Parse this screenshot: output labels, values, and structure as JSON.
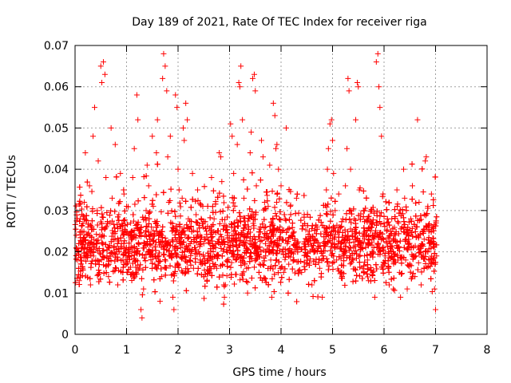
{
  "chart_data": {
    "type": "scatter",
    "title": "Day 189 of 2021, Rate Of TEC Index for receiver riga",
    "xlabel": "GPS time / hours",
    "ylabel": "ROTI / TECUs",
    "xlim": [
      0,
      8
    ],
    "ylim": [
      0,
      0.07
    ],
    "x_ticks": [
      0,
      1,
      2,
      3,
      4,
      5,
      6,
      7,
      8
    ],
    "y_ticks": [
      0,
      0.01,
      0.02,
      0.03,
      0.04,
      0.05,
      0.06,
      0.07
    ],
    "y_tick_labels": [
      "0",
      "0.01",
      "0.02",
      "0.03",
      "0.04",
      "0.05",
      "0.06",
      "0.07"
    ],
    "grid": true,
    "marker": "plus",
    "color": "#ff0000",
    "series": [
      {
        "points": [
          [
            0.02,
            0.024
          ],
          [
            0.05,
            0.018
          ],
          [
            0.08,
            0.013
          ],
          [
            0.1,
            0.028
          ],
          [
            0.12,
            0.021
          ],
          [
            0.15,
            0.016
          ],
          [
            0.18,
            0.032
          ],
          [
            0.2,
            0.044
          ],
          [
            0.22,
            0.019
          ],
          [
            0.25,
            0.026
          ],
          [
            0.28,
            0.036
          ],
          [
            0.3,
            0.012
          ],
          [
            0.33,
            0.022
          ],
          [
            0.35,
            0.048
          ],
          [
            0.38,
            0.055
          ],
          [
            0.4,
            0.018
          ],
          [
            0.43,
            0.03
          ],
          [
            0.45,
            0.042
          ],
          [
            0.48,
            0.024
          ],
          [
            0.5,
            0.065
          ],
          [
            0.52,
            0.061
          ],
          [
            0.55,
            0.066
          ],
          [
            0.58,
            0.063
          ],
          [
            0.6,
            0.038
          ],
          [
            0.62,
            0.019
          ],
          [
            0.65,
            0.014
          ],
          [
            0.68,
            0.027
          ],
          [
            0.7,
            0.05
          ],
          [
            0.72,
            0.033
          ],
          [
            0.75,
            0.021
          ],
          [
            0.78,
            0.046
          ],
          [
            0.8,
            0.016
          ],
          [
            0.83,
            0.012
          ],
          [
            0.85,
            0.029
          ],
          [
            0.88,
            0.039
          ],
          [
            0.9,
            0.022
          ],
          [
            0.93,
            0.018
          ],
          [
            0.95,
            0.034
          ],
          [
            0.98,
            0.025
          ],
          [
            1.0,
            0.031
          ],
          [
            1.02,
            0.015
          ],
          [
            1.05,
            0.02
          ],
          [
            1.08,
            0.027
          ],
          [
            1.1,
            0.019
          ],
          [
            1.12,
            0.038
          ],
          [
            1.15,
            0.045
          ],
          [
            1.18,
            0.024
          ],
          [
            1.2,
            0.058
          ],
          [
            1.22,
            0.052
          ],
          [
            1.25,
            0.016
          ],
          [
            1.28,
            0.006
          ],
          [
            1.3,
            0.004
          ],
          [
            1.33,
            0.011
          ],
          [
            1.35,
            0.022
          ],
          [
            1.38,
            0.03
          ],
          [
            1.4,
            0.041
          ],
          [
            1.43,
            0.036
          ],
          [
            1.45,
            0.02
          ],
          [
            1.48,
            0.026
          ],
          [
            1.5,
            0.048
          ],
          [
            1.52,
            0.031
          ],
          [
            1.55,
            0.017
          ],
          [
            1.58,
            0.044
          ],
          [
            1.6,
            0.052
          ],
          [
            1.62,
            0.023
          ],
          [
            1.65,
            0.008
          ],
          [
            1.68,
            0.014
          ],
          [
            1.7,
            0.062
          ],
          [
            1.72,
            0.068
          ],
          [
            1.75,
            0.065
          ],
          [
            1.78,
            0.059
          ],
          [
            1.8,
            0.043
          ],
          [
            1.82,
            0.032
          ],
          [
            1.85,
            0.048
          ],
          [
            1.88,
            0.025
          ],
          [
            1.9,
            0.009
          ],
          [
            1.92,
            0.006
          ],
          [
            1.95,
            0.058
          ],
          [
            1.98,
            0.055
          ],
          [
            2.0,
            0.04
          ],
          [
            2.02,
            0.035
          ],
          [
            2.05,
            0.021
          ],
          [
            2.08,
            0.033
          ],
          [
            2.1,
            0.05
          ],
          [
            2.12,
            0.047
          ],
          [
            2.15,
            0.056
          ],
          [
            2.18,
            0.052
          ],
          [
            2.2,
            0.028
          ],
          [
            2.22,
            0.018
          ],
          [
            2.25,
            0.026
          ],
          [
            2.28,
            0.039
          ],
          [
            2.3,
            0.016
          ],
          [
            2.33,
            0.021
          ],
          [
            2.35,
            0.029
          ],
          [
            2.38,
            0.035
          ],
          [
            2.4,
            0.02
          ],
          [
            2.43,
            0.024
          ],
          [
            2.45,
            0.017
          ],
          [
            2.48,
            0.031
          ],
          [
            2.5,
            0.022
          ],
          [
            2.55,
            0.025
          ],
          [
            2.6,
            0.019
          ],
          [
            2.65,
            0.038
          ],
          [
            2.7,
            0.028
          ],
          [
            2.75,
            0.016
          ],
          [
            2.8,
            0.044
          ],
          [
            2.83,
            0.043
          ],
          [
            2.85,
            0.037
          ],
          [
            2.88,
            0.023
          ],
          [
            2.9,
            0.009
          ],
          [
            2.92,
            0.012
          ],
          [
            2.95,
            0.026
          ],
          [
            3.0,
            0.021
          ],
          [
            3.02,
            0.051
          ],
          [
            3.05,
            0.048
          ],
          [
            3.08,
            0.039
          ],
          [
            3.1,
            0.027
          ],
          [
            3.12,
            0.018
          ],
          [
            3.15,
            0.046
          ],
          [
            3.18,
            0.061
          ],
          [
            3.2,
            0.06
          ],
          [
            3.22,
            0.065
          ],
          [
            3.25,
            0.052
          ],
          [
            3.28,
            0.033
          ],
          [
            3.3,
            0.024
          ],
          [
            3.33,
            0.016
          ],
          [
            3.35,
            0.01
          ],
          [
            3.38,
            0.028
          ],
          [
            3.4,
            0.044
          ],
          [
            3.42,
            0.049
          ],
          [
            3.45,
            0.062
          ],
          [
            3.48,
            0.063
          ],
          [
            3.5,
            0.059
          ],
          [
            3.52,
            0.036
          ],
          [
            3.55,
            0.021
          ],
          [
            3.58,
            0.017
          ],
          [
            3.6,
            0.026
          ],
          [
            3.62,
            0.047
          ],
          [
            3.65,
            0.043
          ],
          [
            3.68,
            0.032
          ],
          [
            3.7,
            0.019
          ],
          [
            3.72,
            0.023
          ],
          [
            3.75,
            0.031
          ],
          [
            3.78,
            0.041
          ],
          [
            3.8,
            0.018
          ],
          [
            3.82,
            0.009
          ],
          [
            3.85,
            0.056
          ],
          [
            3.88,
            0.053
          ],
          [
            3.9,
            0.045
          ],
          [
            3.92,
            0.046
          ],
          [
            3.95,
            0.04
          ],
          [
            3.98,
            0.026
          ],
          [
            4.0,
            0.036
          ],
          [
            4.02,
            0.02
          ],
          [
            4.05,
            0.015
          ],
          [
            4.08,
            0.028
          ],
          [
            4.1,
            0.05
          ],
          [
            4.12,
            0.022
          ],
          [
            4.15,
            0.017
          ],
          [
            4.18,
            0.031
          ],
          [
            4.2,
            0.024
          ],
          [
            4.25,
            0.018
          ],
          [
            4.3,
            0.033
          ],
          [
            4.35,
            0.021
          ],
          [
            4.4,
            0.015
          ],
          [
            4.45,
            0.029
          ],
          [
            4.5,
            0.019
          ],
          [
            4.55,
            0.025
          ],
          [
            4.6,
            0.012
          ],
          [
            4.65,
            0.02
          ],
          [
            4.7,
            0.026
          ],
          [
            4.75,
            0.016
          ],
          [
            4.8,
            0.009
          ],
          [
            4.85,
            0.022
          ],
          [
            4.88,
            0.035
          ],
          [
            4.9,
            0.04
          ],
          [
            4.92,
            0.045
          ],
          [
            4.95,
            0.051
          ],
          [
            4.98,
            0.052
          ],
          [
            5.0,
            0.047
          ],
          [
            5.02,
            0.039
          ],
          [
            5.05,
            0.03
          ],
          [
            5.08,
            0.018
          ],
          [
            5.1,
            0.025
          ],
          [
            5.12,
            0.034
          ],
          [
            5.15,
            0.022
          ],
          [
            5.18,
            0.015
          ],
          [
            5.2,
            0.028
          ],
          [
            5.22,
            0.02
          ],
          [
            5.25,
            0.036
          ],
          [
            5.28,
            0.045
          ],
          [
            5.3,
            0.062
          ],
          [
            5.32,
            0.059
          ],
          [
            5.35,
            0.04
          ],
          [
            5.38,
            0.024
          ],
          [
            5.4,
            0.018
          ],
          [
            5.42,
            0.028
          ],
          [
            5.45,
            0.052
          ],
          [
            5.48,
            0.061
          ],
          [
            5.5,
            0.06
          ],
          [
            5.52,
            0.035
          ],
          [
            5.55,
            0.021
          ],
          [
            5.58,
            0.016
          ],
          [
            5.6,
            0.03
          ],
          [
            5.62,
            0.019
          ],
          [
            5.65,
            0.024
          ],
          [
            5.68,
            0.018
          ],
          [
            5.7,
            0.013
          ],
          [
            5.72,
            0.022
          ],
          [
            5.75,
            0.027
          ],
          [
            5.78,
            0.015
          ],
          [
            5.8,
            0.021
          ],
          [
            5.82,
            0.009
          ],
          [
            5.85,
            0.066
          ],
          [
            5.88,
            0.068
          ],
          [
            5.9,
            0.06
          ],
          [
            5.92,
            0.055
          ],
          [
            5.95,
            0.048
          ],
          [
            5.98,
            0.034
          ],
          [
            6.0,
            0.027
          ],
          [
            6.02,
            0.019
          ],
          [
            6.05,
            0.025
          ],
          [
            6.08,
            0.016
          ],
          [
            6.1,
            0.012
          ],
          [
            6.12,
            0.022
          ],
          [
            6.15,
            0.028
          ],
          [
            6.18,
            0.011
          ],
          [
            6.2,
            0.018
          ],
          [
            6.22,
            0.024
          ],
          [
            6.25,
            0.035
          ],
          [
            6.28,
            0.027
          ],
          [
            6.3,
            0.015
          ],
          [
            6.32,
            0.009
          ],
          [
            6.35,
            0.026
          ],
          [
            6.38,
            0.04
          ],
          [
            6.4,
            0.033
          ],
          [
            6.42,
            0.018
          ],
          [
            6.45,
            0.011
          ],
          [
            6.48,
            0.022
          ],
          [
            6.5,
            0.017
          ],
          [
            6.52,
            0.028
          ],
          [
            6.55,
            0.036
          ],
          [
            6.58,
            0.019
          ],
          [
            6.6,
            0.014
          ],
          [
            6.62,
            0.026
          ],
          [
            6.65,
            0.052
          ],
          [
            6.68,
            0.032
          ],
          [
            6.7,
            0.02
          ],
          [
            6.72,
            0.012
          ],
          [
            6.75,
            0.025
          ],
          [
            6.78,
            0.029
          ],
          [
            6.8,
            0.042
          ],
          [
            6.82,
            0.043
          ],
          [
            6.85,
            0.031
          ],
          [
            6.88,
            0.018
          ],
          [
            6.9,
            0.022
          ],
          [
            6.92,
            0.034
          ],
          [
            6.95,
            0.026
          ],
          [
            6.98,
            0.011
          ],
          [
            7.0,
            0.006
          ],
          [
            7.01,
            0.027
          ],
          [
            7.02,
            0.019
          ]
        ]
      }
    ]
  }
}
